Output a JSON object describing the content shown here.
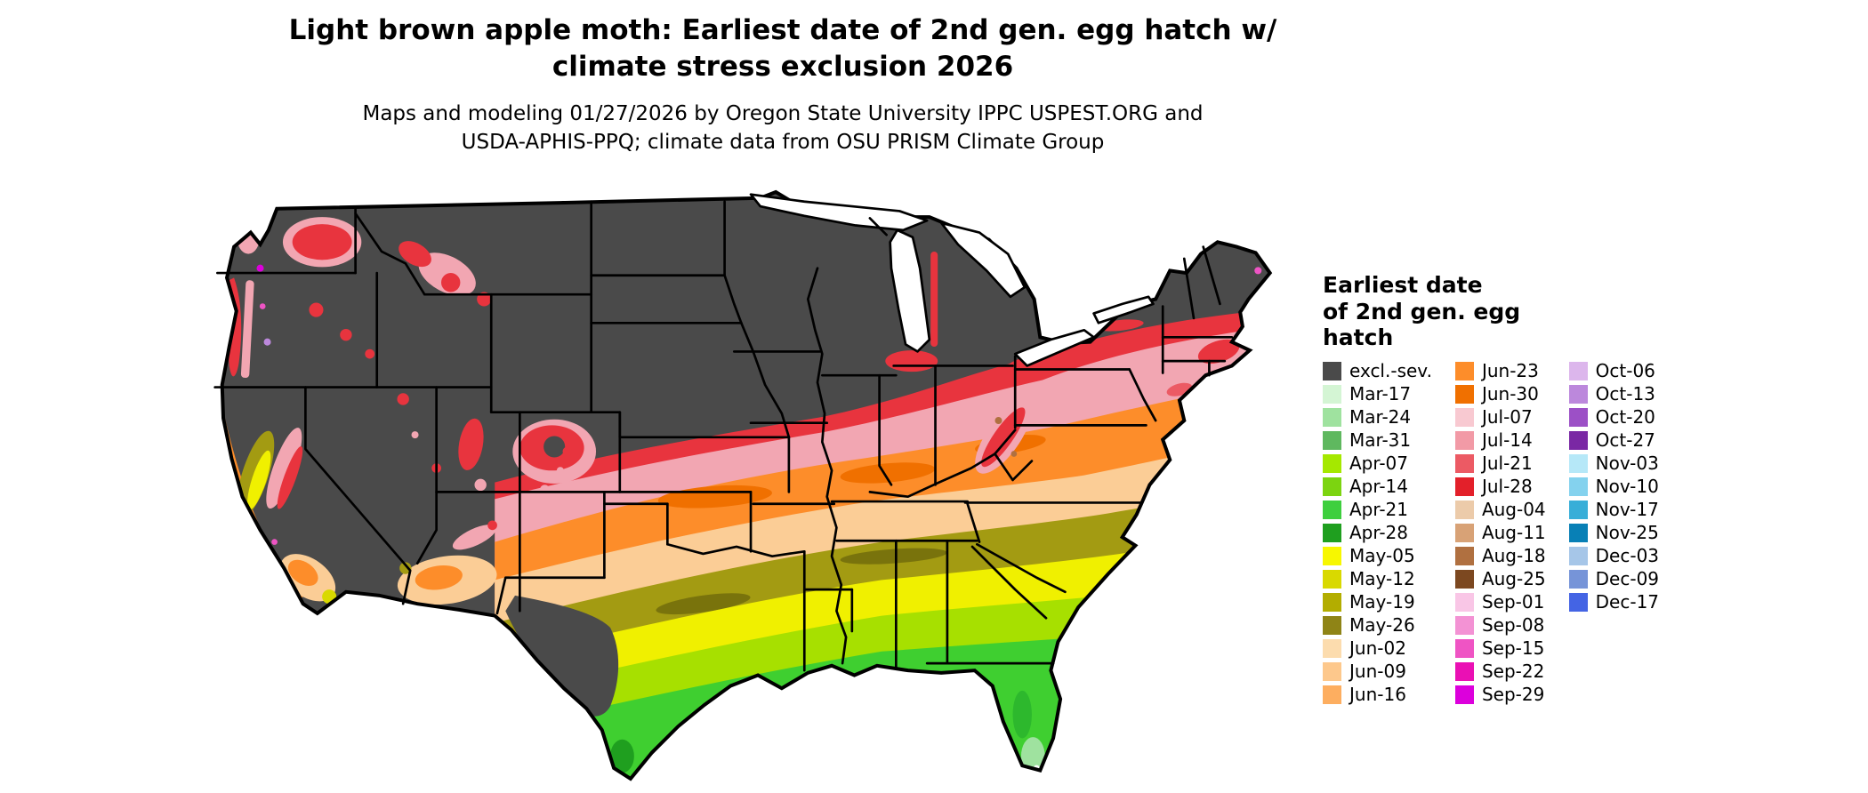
{
  "title": {
    "line1": "Light brown apple moth: Earliest date of 2nd gen. egg hatch w/",
    "line2": "climate stress exclusion 2026"
  },
  "subtitle": {
    "line1": "Maps and modeling 01/27/2026 by Oregon State University IPPC USPEST.ORG and",
    "line2": "USDA-APHIS-PPQ; climate data from OSU PRISM Climate Group"
  },
  "legend": {
    "title_lines": [
      "Earliest date",
      "of 2nd gen. egg",
      "hatch"
    ],
    "columns": [
      [
        {
          "label": "excl.-sev.",
          "color": "#4a4a4a"
        },
        {
          "label": "Mar-17",
          "color": "#d4f5d4"
        },
        {
          "label": "Mar-24",
          "color": "#9fe29f"
        },
        {
          "label": "Mar-31",
          "color": "#5fb85f"
        },
        {
          "label": "Apr-07",
          "color": "#a5e800"
        },
        {
          "label": "Apr-14",
          "color": "#7cd410"
        },
        {
          "label": "Apr-21",
          "color": "#3ecf3e"
        },
        {
          "label": "Apr-28",
          "color": "#1f9f1f"
        },
        {
          "label": "May-05",
          "color": "#f7f700"
        },
        {
          "label": "May-12",
          "color": "#d9d900"
        },
        {
          "label": "May-19",
          "color": "#b3ad00"
        },
        {
          "label": "May-26",
          "color": "#8f8416"
        },
        {
          "label": "Jun-02",
          "color": "#fcdcae"
        },
        {
          "label": "Jun-09",
          "color": "#fdc88c"
        },
        {
          "label": "Jun-16",
          "color": "#fdae60"
        }
      ],
      [
        {
          "label": "Jun-23",
          "color": "#fd8d2a"
        },
        {
          "label": "Jun-30",
          "color": "#f07000"
        },
        {
          "label": "Jul-07",
          "color": "#f8c9d1"
        },
        {
          "label": "Jul-14",
          "color": "#f29aa6"
        },
        {
          "label": "Jul-21",
          "color": "#ec5a64"
        },
        {
          "label": "Jul-28",
          "color": "#e3202a"
        },
        {
          "label": "Aug-04",
          "color": "#eccbaa"
        },
        {
          "label": "Aug-11",
          "color": "#d8a276"
        },
        {
          "label": "Aug-18",
          "color": "#b07040"
        },
        {
          "label": "Aug-25",
          "color": "#7c4820"
        },
        {
          "label": "Sep-01",
          "color": "#f9c6e6"
        },
        {
          "label": "Sep-08",
          "color": "#f392d4"
        },
        {
          "label": "Sep-15",
          "color": "#ef54c4"
        },
        {
          "label": "Sep-22",
          "color": "#ea10b4"
        },
        {
          "label": "Sep-29",
          "color": "#dc00dc"
        }
      ],
      [
        {
          "label": "Oct-06",
          "color": "#dcb6ec"
        },
        {
          "label": "Oct-13",
          "color": "#bc88dc"
        },
        {
          "label": "Oct-20",
          "color": "#9c50c6"
        },
        {
          "label": "Oct-27",
          "color": "#7a28a4"
        },
        {
          "label": "Nov-03",
          "color": "#b6e8f8"
        },
        {
          "label": "Nov-10",
          "color": "#84d2ee"
        },
        {
          "label": "Nov-17",
          "color": "#38aed8"
        },
        {
          "label": "Nov-25",
          "color": "#0880b6"
        },
        {
          "label": "Dec-03",
          "color": "#a6c6e8"
        },
        {
          "label": "Dec-09",
          "color": "#7694d8"
        },
        {
          "label": "Dec-17",
          "color": "#4464e4"
        }
      ]
    ]
  }
}
